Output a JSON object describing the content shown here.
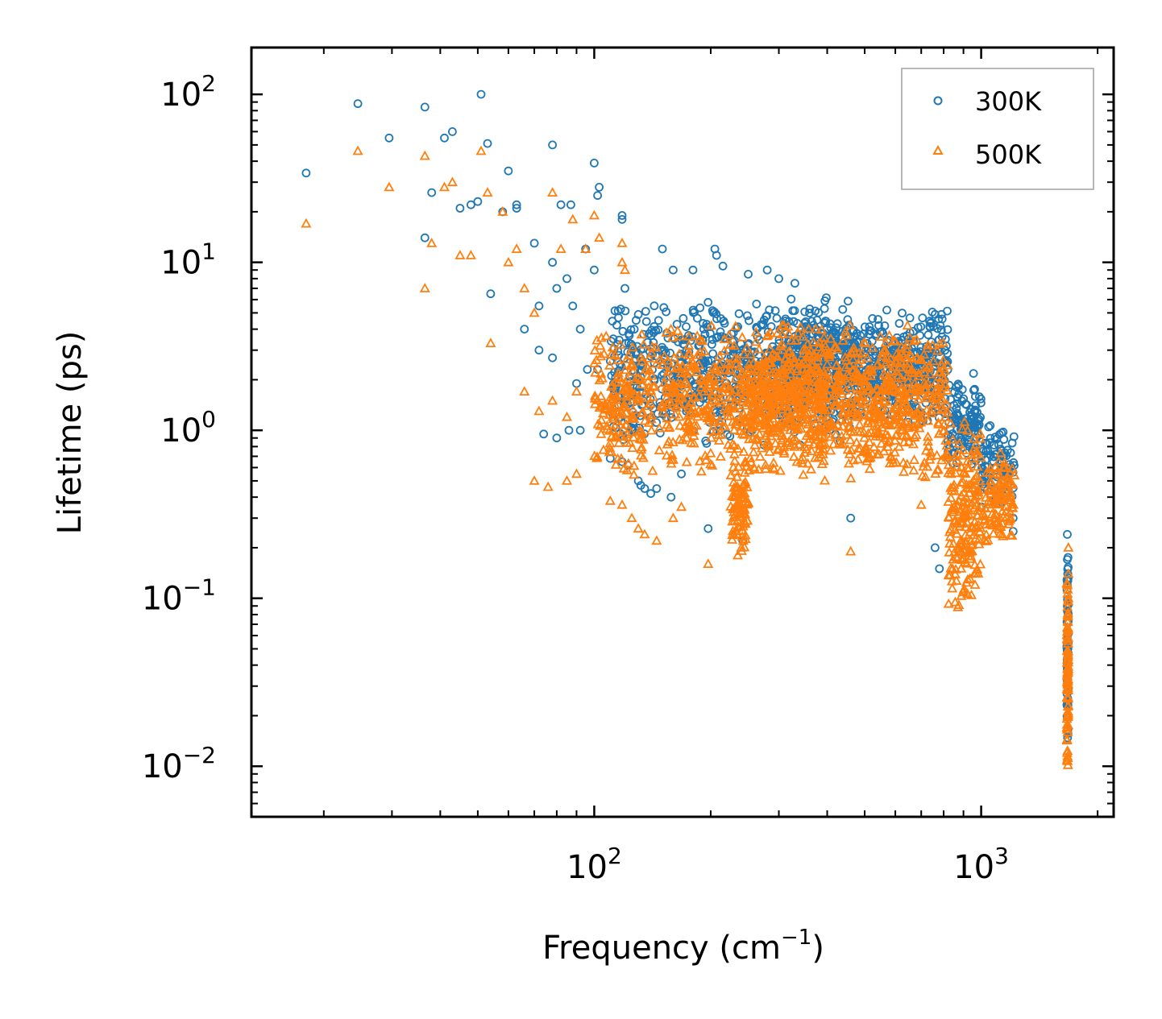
{
  "chart_data": {
    "type": "scatter",
    "x_scale": "log",
    "y_scale": "log",
    "xlim": [
      13,
      2200
    ],
    "ylim": [
      0.005,
      190
    ],
    "xlabel_prefix": "Frequency (cm",
    "xlabel_sup": "−1",
    "xlabel_suffix": ")",
    "ylabel": "Lifetime (ps)",
    "x_ticks": [
      {
        "value": 100,
        "base": "10",
        "exp": "2"
      },
      {
        "value": 1000,
        "base": "10",
        "exp": "3"
      }
    ],
    "y_ticks": [
      {
        "value": 100,
        "base": "10",
        "exp": "2"
      },
      {
        "value": 10,
        "base": "10",
        "exp": "1"
      },
      {
        "value": 1,
        "base": "10",
        "exp": "0"
      },
      {
        "value": 0.1,
        "base": "10",
        "exp": "−1"
      },
      {
        "value": 0.01,
        "base": "10",
        "exp": "−2"
      }
    ],
    "legend_position": "top-right",
    "series": [
      {
        "name": "300K",
        "marker": "circle",
        "color": "#1f77b4",
        "points": [
          [
            18.0,
            34
          ],
          [
            24.5,
            88
          ],
          [
            29.5,
            55
          ],
          [
            36.5,
            84
          ],
          [
            38,
            26
          ],
          [
            41,
            55
          ],
          [
            43,
            60
          ],
          [
            45,
            21
          ],
          [
            48,
            22
          ],
          [
            50,
            23
          ],
          [
            51,
            100
          ],
          [
            53,
            51
          ],
          [
            58,
            20
          ],
          [
            60,
            35
          ],
          [
            63,
            22
          ],
          [
            63,
            21
          ],
          [
            70,
            13
          ],
          [
            78,
            50
          ],
          [
            82,
            22
          ],
          [
            87,
            22
          ],
          [
            100,
            39
          ],
          [
            102,
            25
          ],
          [
            103,
            28
          ],
          [
            118,
            19
          ],
          [
            118,
            18
          ],
          [
            36.5,
            14
          ],
          [
            54,
            6.5
          ],
          [
            72,
            5.5
          ],
          [
            78,
            10
          ],
          [
            80,
            7
          ],
          [
            85,
            8
          ],
          [
            88,
            5.5
          ],
          [
            92,
            4
          ],
          [
            95,
            12
          ],
          [
            100,
            9
          ],
          [
            120,
            7
          ],
          [
            150,
            12
          ],
          [
            160,
            9
          ],
          [
            180,
            9
          ],
          [
            205,
            12
          ],
          [
            207,
            11
          ],
          [
            215,
            9.5
          ],
          [
            250,
            8.5
          ],
          [
            280,
            9
          ],
          [
            300,
            8
          ],
          [
            330,
            7.5
          ],
          [
            66,
            4
          ],
          [
            72,
            3
          ],
          [
            78,
            2.7
          ],
          [
            90,
            1.9
          ],
          [
            96,
            2.3
          ],
          [
            102,
            2.3
          ],
          [
            112,
            1.6
          ],
          [
            86,
            1.0
          ],
          [
            80,
            0.9
          ],
          [
            74,
            0.95
          ],
          [
            92,
            1.0
          ],
          [
            110,
            0.68
          ],
          [
            118,
            0.65
          ],
          [
            122,
            0.62
          ],
          [
            130,
            0.5
          ],
          [
            132,
            0.47
          ],
          [
            135,
            0.45
          ],
          [
            140,
            0.42
          ],
          [
            145,
            0.45
          ],
          [
            158,
            0.4
          ],
          [
            168,
            0.55
          ],
          [
            197,
            0.26
          ],
          [
            242,
            0.22
          ],
          [
            460,
            0.3
          ],
          [
            760,
            0.2
          ],
          [
            780,
            0.15
          ],
          [
            1210,
            0.3
          ],
          [
            1210,
            0.25
          ],
          [
            1670,
            0.24
          ],
          [
            1670,
            0.17
          ],
          [
            1670,
            0.12
          ],
          [
            1670,
            0.09
          ]
        ],
        "bands": [
          {
            "x_range": [
              110,
              460
            ],
            "y_range": [
              0.8,
              6.5
            ],
            "count": 700
          },
          {
            "x_range": [
              300,
              820
            ],
            "y_range": [
              1.0,
              5.5
            ],
            "count": 650
          },
          {
            "x_range": [
              820,
              1000
            ],
            "y_range": [
              0.6,
              2.2
            ],
            "count": 120
          },
          {
            "x_range": [
              1000,
              1220
            ],
            "y_range": [
              0.3,
              1.2
            ],
            "count": 90
          },
          {
            "x_range": [
              1665,
              1680
            ],
            "y_range": [
              0.012,
              0.2
            ],
            "count": 70
          }
        ]
      },
      {
        "name": "500K",
        "marker": "triangle",
        "color": "#ff7f0e",
        "points": [
          [
            18.0,
            17
          ],
          [
            24.5,
            46
          ],
          [
            29.5,
            28
          ],
          [
            36.5,
            43
          ],
          [
            36.5,
            7
          ],
          [
            38,
            13
          ],
          [
            41,
            28
          ],
          [
            43,
            30
          ],
          [
            45,
            11
          ],
          [
            48,
            11
          ],
          [
            51,
            46
          ],
          [
            53,
            26
          ],
          [
            54,
            3.3
          ],
          [
            58,
            20
          ],
          [
            60,
            10
          ],
          [
            63,
            12
          ],
          [
            66,
            7
          ],
          [
            70,
            5
          ],
          [
            78,
            26
          ],
          [
            82,
            12
          ],
          [
            88,
            18
          ],
          [
            95,
            12
          ],
          [
            100,
            19
          ],
          [
            103,
            14
          ],
          [
            118,
            10
          ],
          [
            118,
            13
          ],
          [
            120,
            9
          ],
          [
            66,
            1.7
          ],
          [
            72,
            1.3
          ],
          [
            78,
            1.5
          ],
          [
            85,
            1.2
          ],
          [
            90,
            1.7
          ],
          [
            100,
            2.5
          ],
          [
            112,
            1.0
          ],
          [
            70,
            0.5
          ],
          [
            76,
            0.46
          ],
          [
            85,
            0.5
          ],
          [
            90,
            0.55
          ],
          [
            110,
            0.38
          ],
          [
            118,
            0.36
          ],
          [
            125,
            0.3
          ],
          [
            130,
            0.26
          ],
          [
            135,
            0.24
          ],
          [
            145,
            0.22
          ],
          [
            160,
            0.3
          ],
          [
            168,
            0.35
          ],
          [
            197,
            0.16
          ],
          [
            235,
            0.18
          ],
          [
            240,
            0.2
          ],
          [
            460,
            0.19
          ],
          [
            700,
            0.36
          ],
          [
            1680,
            0.2
          ],
          [
            1680,
            0.14
          ],
          [
            1680,
            0.1
          ]
        ],
        "bands": [
          {
            "x_range": [
              100,
              400
            ],
            "y_range": [
              0.5,
              4.5
            ],
            "count": 700
          },
          {
            "x_range": [
              225,
              250
            ],
            "y_range": [
              0.18,
              0.7
            ],
            "count": 90
          },
          {
            "x_range": [
              250,
              820
            ],
            "y_range": [
              0.5,
              4.5
            ],
            "count": 800
          },
          {
            "x_range": [
              820,
              1000
            ],
            "y_range": [
              0.08,
              1.2
            ],
            "count": 200
          },
          {
            "x_range": [
              1000,
              1220
            ],
            "y_range": [
              0.2,
              0.8
            ],
            "count": 110
          },
          {
            "x_range": [
              1665,
              1680
            ],
            "y_range": [
              0.008,
              0.15
            ],
            "count": 90
          }
        ]
      }
    ]
  }
}
